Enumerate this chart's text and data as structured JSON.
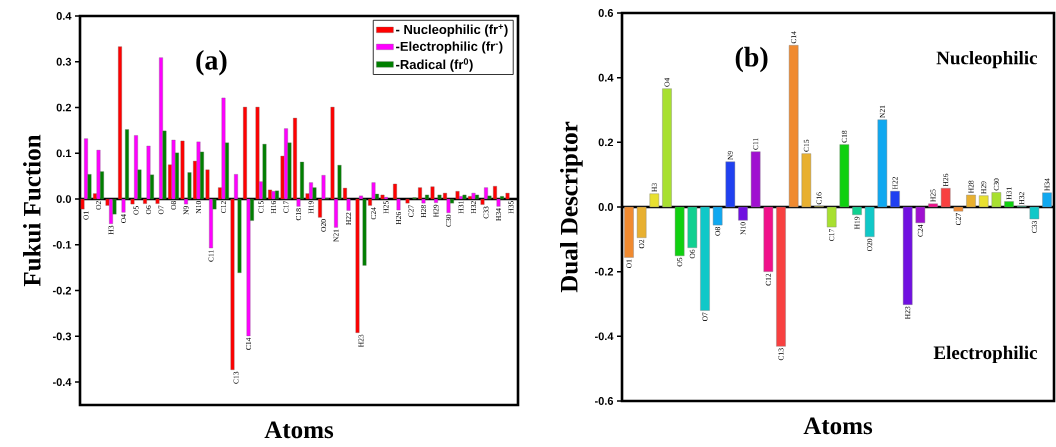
{
  "chart_data": [
    {
      "type": "bar",
      "title": "(a)",
      "xlabel": "Atoms",
      "ylabel": "Fukui Fuction",
      "categories": [
        "O1",
        "O2",
        "H3",
        "O4",
        "O5",
        "O6",
        "O7",
        "O8",
        "N9",
        "N10",
        "C11",
        "C12",
        "C13",
        "C14",
        "C15",
        "H16",
        "C17",
        "C18",
        "H19",
        "O20",
        "N21",
        "H22",
        "H23",
        "C24",
        "H25",
        "H26",
        "C27",
        "H28",
        "H29",
        "C30",
        "H31",
        "H32",
        "C33",
        "H34",
        "H35"
      ],
      "series": [
        {
          "name": "- Nucleophilic (fr$^{+}$)",
          "color": "#ff0000",
          "values": [
            -0.022,
            0.012,
            -0.014,
            0.333,
            -0.011,
            -0.01,
            -0.01,
            0.075,
            0.127,
            0.083,
            0.064,
            0.025,
            -0.373,
            0.201,
            0.201,
            0.02,
            0.094,
            0.177,
            0.012,
            -0.04,
            0.201,
            0.024,
            -0.292,
            -0.014,
            0.009,
            0.033,
            -0.009,
            0.025,
            0.027,
            0.013,
            0.017,
            0.006,
            -0.012,
            0.028,
            0.013
          ]
        },
        {
          "name": "-Electrophilic (fr$^{-}$)",
          "color": "#ff00ff",
          "values": [
            0.132,
            0.107,
            -0.054,
            -0.029,
            0.139,
            0.116,
            0.309,
            0.129,
            -0.011,
            0.125,
            -0.107,
            0.221,
            0.054,
            -0.299,
            0.038,
            0.017,
            0.154,
            -0.016,
            0.036,
            0.052,
            -0.062,
            -0.025,
            0.007,
            0.036,
            0.004,
            -0.024,
            null,
            -0.009,
            -0.008,
            -0.03,
            0.006,
            0.013,
            0.025,
            -0.016,
            null
          ]
        },
        {
          "name": "-Radical (fr$^{0}$)",
          "color": "#008000",
          "values": [
            0.054,
            0.06,
            -0.033,
            0.152,
            0.064,
            0.053,
            0.149,
            0.101,
            0.058,
            0.103,
            -0.022,
            0.123,
            -0.161,
            -0.047,
            0.12,
            0.018,
            0.123,
            0.081,
            0.025,
            0.002,
            0.074,
            null,
            -0.145,
            0.011,
            null,
            null,
            0.003,
            0.009,
            0.009,
            -0.009,
            0.009,
            0.009,
            0.007,
            0.006,
            null
          ]
        }
      ],
      "ylim": [
        -0.45,
        0.4
      ],
      "yticks": [
        -0.4,
        -0.3,
        -0.2,
        -0.1,
        {
          "value": 0,
          "label": "0.0"
        },
        0.1,
        0.2,
        0.3,
        0.4
      ],
      "legend": "top right"
    },
    {
      "type": "bar",
      "title": "(b)",
      "xlabel": "Atoms",
      "ylabel": "Dual Descriptor",
      "categories": [
        "O1",
        "O2",
        "H3",
        "O4",
        "O5",
        "O6",
        "O7",
        "O8",
        "N9",
        "N10",
        "C11",
        "C12",
        "C13",
        "C14",
        "C15",
        "C16",
        "C17",
        "C18",
        "H19",
        "O20",
        "N21",
        "H22",
        "H23",
        "C24",
        "H25",
        "H26",
        "C27",
        "H28",
        "H29",
        "C30",
        "H31",
        "H32",
        "C33",
        "H34"
      ],
      "values": [
        -0.156,
        -0.095,
        0.041,
        0.366,
        -0.151,
        -0.126,
        -0.32,
        -0.056,
        0.14,
        -0.041,
        0.171,
        -0.2,
        -0.431,
        0.5,
        0.165,
        0.002,
        -0.062,
        0.193,
        -0.024,
        -0.092,
        0.27,
        0.049,
        -0.302,
        -0.049,
        0.01,
        0.058,
        -0.013,
        0.037,
        0.035,
        0.045,
        0.017,
        0.002,
        -0.037,
        0.044
      ],
      "colors": [
        "#f08a30",
        "#e8b030",
        "#e8e030",
        "#a8e030",
        "#10d010",
        "#10d090",
        "#10c8c8",
        "#10a8f0",
        "#2040f0",
        "#7010e0",
        "#a010d0",
        "#f0108a",
        "#f84040",
        "#f08a30",
        "#e8b030",
        "#e8e030",
        "#a8e030",
        "#10d010",
        "#10d090",
        "#10c8c8",
        "#10a8f0",
        "#2040f0",
        "#7010e0",
        "#a010d0",
        "#f0108a",
        "#f84040",
        "#f08a30",
        "#e8b030",
        "#e8e030",
        "#a8e030",
        "#10d010",
        "#10d090",
        "#10c8c8",
        "#10a8f0"
      ],
      "ylim": [
        -0.6,
        0.6
      ],
      "yticks": [
        -0.6,
        -0.4,
        -0.2,
        {
          "value": 0,
          "label": "0.0"
        },
        0.2,
        0.4,
        0.6
      ],
      "annotations": [
        "Nucleophilic",
        "Electrophilic"
      ]
    }
  ]
}
